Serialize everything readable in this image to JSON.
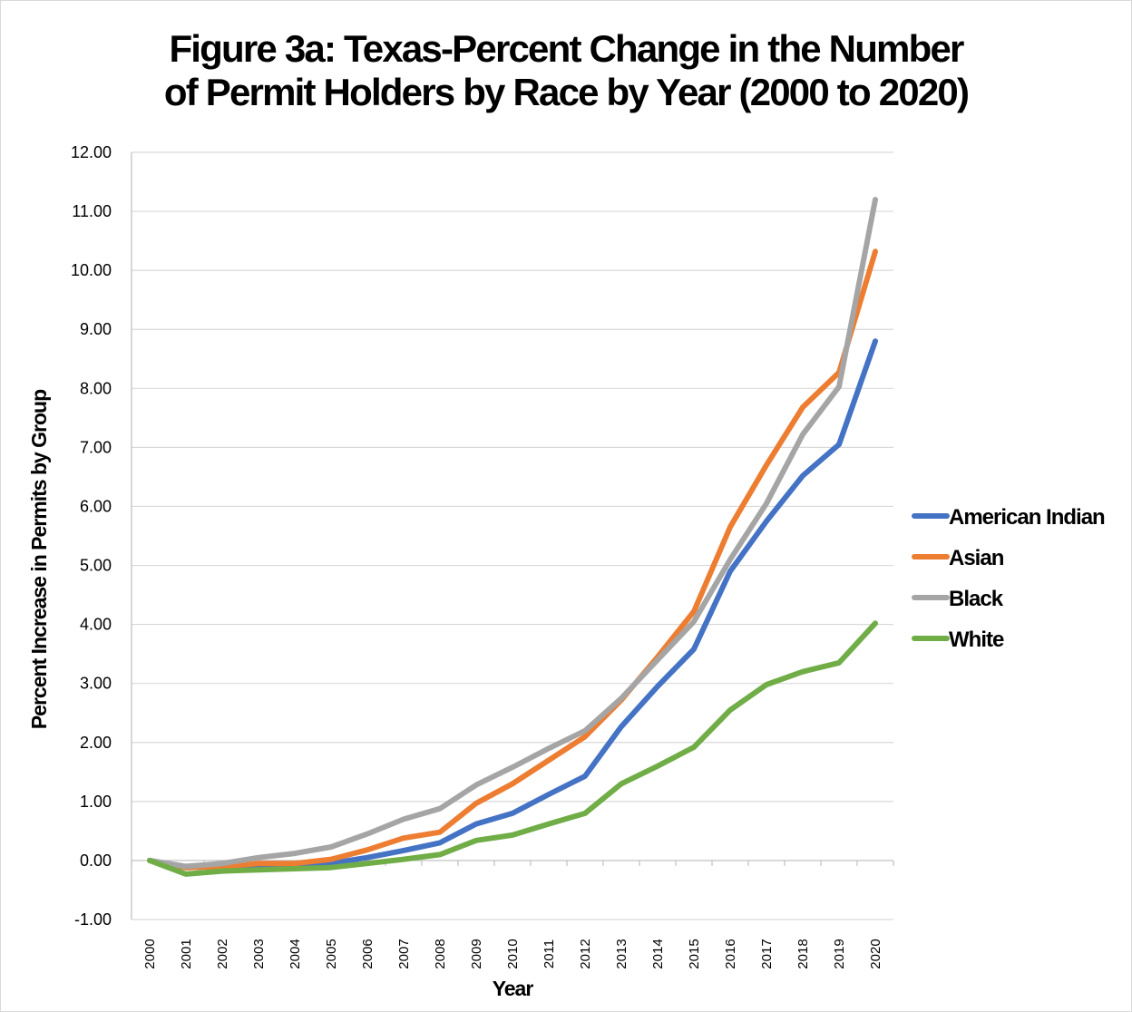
{
  "chart_data": {
    "type": "line",
    "title_lines": [
      "Figure 3a: Texas-Percent Change in the Number",
      "of Permit Holders by Race by Year (2000 to 2020)"
    ],
    "xlabel": "Year",
    "ylabel": "Percent Increase in Permits by Group",
    "ylim": [
      -1,
      12
    ],
    "y_ticks": [
      "-1.00",
      "0.00",
      "1.00",
      "2.00",
      "3.00",
      "4.00",
      "5.00",
      "6.00",
      "7.00",
      "8.00",
      "9.00",
      "10.00",
      "11.00",
      "12.00"
    ],
    "x": [
      "2000",
      "2001",
      "2002",
      "2003",
      "2004",
      "2005",
      "2006",
      "2007",
      "2008",
      "2009",
      "2010",
      "2011",
      "2012",
      "2013",
      "2014",
      "2015",
      "2016",
      "2017",
      "2018",
      "2019",
      "2020"
    ],
    "grid": true,
    "legend_position": "right",
    "series": [
      {
        "name": "American Indian",
        "color": "#4472C4",
        "values": [
          0,
          -0.12,
          -0.1,
          -0.08,
          -0.08,
          -0.05,
          0.05,
          0.17,
          0.3,
          0.62,
          0.8,
          1.12,
          1.43,
          2.27,
          2.95,
          3.58,
          4.9,
          5.75,
          6.52,
          7.05,
          8.8
        ]
      },
      {
        "name": "Asian",
        "color": "#ED7D31",
        "values": [
          0,
          -0.12,
          -0.1,
          -0.05,
          -0.05,
          0.02,
          0.18,
          0.38,
          0.48,
          0.97,
          1.3,
          1.7,
          2.1,
          2.72,
          3.45,
          4.22,
          5.65,
          6.7,
          7.68,
          8.27,
          10.32
        ]
      },
      {
        "name": "Black",
        "color": "#A5A5A5",
        "values": [
          0,
          -0.1,
          -0.05,
          0.05,
          0.12,
          0.23,
          0.45,
          0.7,
          0.88,
          1.28,
          1.58,
          1.9,
          2.2,
          2.75,
          3.4,
          4.05,
          5.1,
          6.05,
          7.22,
          8.03,
          11.2
        ]
      },
      {
        "name": "White",
        "color": "#70AD47",
        "values": [
          0,
          -0.23,
          -0.18,
          -0.16,
          -0.14,
          -0.12,
          -0.05,
          0.02,
          0.1,
          0.34,
          0.43,
          0.62,
          0.8,
          1.3,
          1.6,
          1.92,
          2.55,
          2.98,
          3.2,
          3.35,
          4.02
        ]
      }
    ]
  }
}
